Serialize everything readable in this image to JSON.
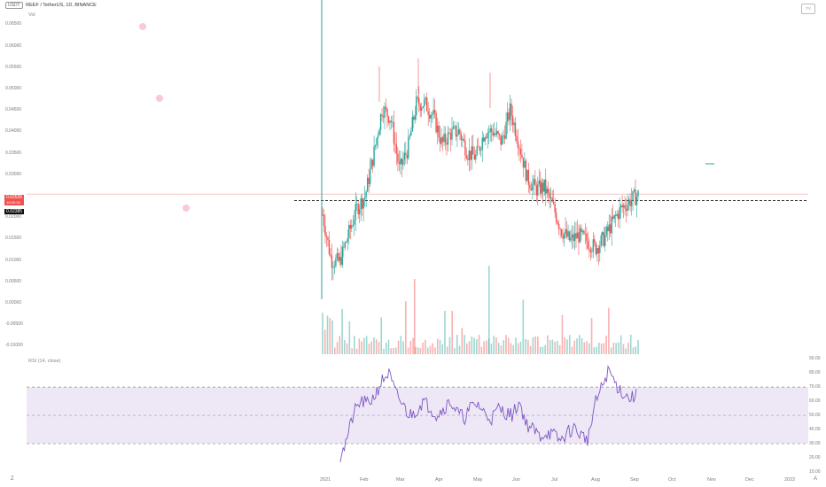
{
  "header": {
    "currency_chip": "USDT",
    "symbol_title": "REEF / TetherUS, 1D, BINANCE",
    "volume_label": "Vol",
    "logo_chip": "TV"
  },
  "price_axis": {
    "ticks": [
      "0.06500",
      "0.06000",
      "0.05500",
      "0.05000",
      "0.04500",
      "0.04000",
      "0.03500",
      "0.03000",
      "0.02000",
      "0.01500",
      "0.01000",
      "0.00500",
      "0.00000",
      "-0.00500",
      "-0.01000"
    ],
    "price_tag_value": "0.02535",
    "price_tag_countdown": "19:30:15",
    "line_tag_value": "0.02385"
  },
  "rsi": {
    "title": "RSI (14, close)",
    "ticks": [
      "90.00",
      "80.00",
      "70.00",
      "60.00",
      "50.00",
      "40.00",
      "30.00",
      "20.00",
      "10.00"
    ],
    "upper_band": 70,
    "lower_band": 30,
    "mid_band": 50
  },
  "time_axis": {
    "labels": [
      "2021",
      "Feb",
      "Mar",
      "Apr",
      "May",
      "Jun",
      "Jul",
      "Aug",
      "Sep",
      "Oct",
      "Nov",
      "Dec",
      "2022"
    ]
  },
  "controls": {
    "zoom_icon_label": "Z",
    "auto_scale_label": "A"
  },
  "colors": {
    "up": "#26a69a",
    "down": "#ef5350",
    "rsi_line": "#7e57c2",
    "rsi_band_fill": "#ede7f6",
    "price_line": "#f7c5c3",
    "horizontal_line": "#333333",
    "vertical_line": "#26a69a",
    "marker_fill": "#f8bbd0"
  },
  "chart_data": {
    "type": "candlestick",
    "current_price": 0.02535,
    "horizontal_level": 0.02385,
    "price_range": [
      -0.012,
      0.069
    ],
    "rsi_range": [
      10,
      92
    ],
    "price_path": [
      [
        0.0252,
        0.016
      ],
      [
        0.0115,
        0.0085
      ],
      [
        0.0075,
        0.0115
      ],
      [
        0.014,
        0.0175
      ],
      [
        0.0205,
        0.0235
      ],
      [
        0.022,
        0.028
      ],
      [
        0.0315,
        0.038
      ],
      [
        0.049,
        0.042
      ],
      [
        0.047,
        0.039
      ],
      [
        0.033,
        0.029
      ],
      [
        0.034,
        0.038
      ],
      [
        0.044,
        0.049
      ],
      [
        0.05,
        0.043
      ],
      [
        0.047,
        0.04
      ],
      [
        0.038,
        0.036
      ],
      [
        0.039,
        0.04
      ],
      [
        0.043,
        0.037
      ],
      [
        0.036,
        0.034
      ],
      [
        0.032,
        0.036
      ],
      [
        0.039,
        0.041
      ],
      [
        0.042,
        0.038
      ],
      [
        0.035,
        0.04
      ],
      [
        0.046,
        0.044
      ],
      [
        0.039,
        0.036
      ],
      [
        0.03,
        0.028
      ],
      [
        0.025,
        0.028
      ],
      [
        0.029,
        0.025
      ],
      [
        0.024,
        0.021
      ],
      [
        0.018,
        0.016
      ],
      [
        0.014,
        0.015
      ],
      [
        0.016,
        0.0155
      ],
      [
        0.015,
        0.014
      ],
      [
        0.013,
        0.0125
      ],
      [
        0.014,
        0.016
      ],
      [
        0.018,
        0.0195
      ],
      [
        0.021,
        0.023
      ],
      [
        0.024,
        0.0235
      ],
      [
        0.025,
        0.0253
      ]
    ],
    "rsi_series": [
      17,
      35,
      52,
      60,
      58,
      64,
      74,
      80,
      66,
      58,
      50,
      53,
      60,
      56,
      50,
      55,
      60,
      52,
      48,
      56,
      58,
      51,
      48,
      55,
      52,
      50,
      60,
      44,
      40,
      35,
      38,
      36,
      32,
      38,
      41,
      36,
      33,
      58,
      70,
      82,
      72,
      66,
      62,
      64
    ],
    "volume_bars": 130
  }
}
